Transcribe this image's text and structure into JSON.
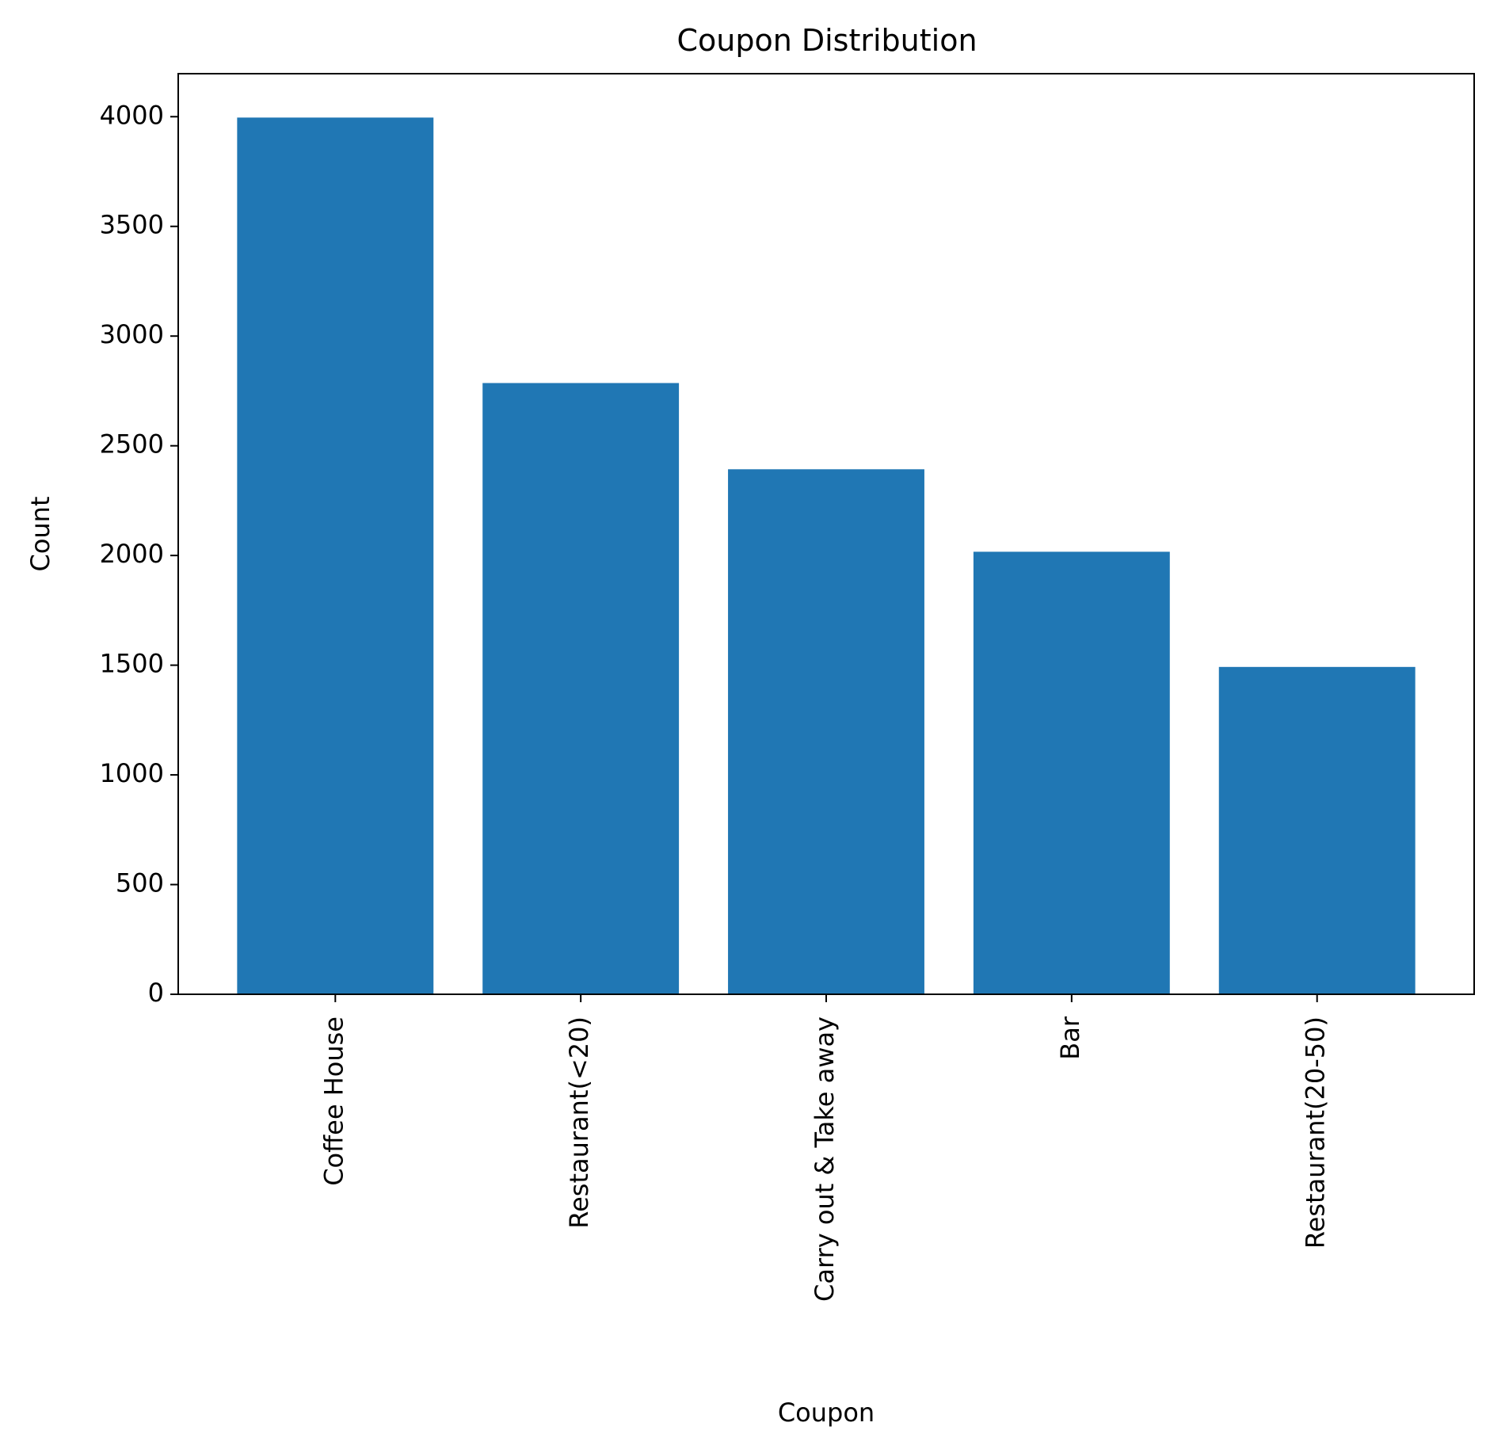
{
  "chart_data": {
    "type": "bar",
    "title": "Coupon Distribution",
    "xlabel": "Coupon",
    "ylabel": "Count",
    "categories": [
      "Coffee House",
      "Restaurant(<20)",
      "Carry out & Take away",
      "Bar",
      "Restaurant(20-50)"
    ],
    "values": [
      3996,
      2786,
      2393,
      2017,
      1492
    ],
    "ylim": [
      0,
      4196
    ],
    "yticks": [
      0,
      500,
      1000,
      1500,
      2000,
      2500,
      3000,
      3500,
      4000
    ],
    "ytick_labels": [
      "0",
      "500",
      "1000",
      "1500",
      "2000",
      "2500",
      "3000",
      "3500",
      "4000"
    ],
    "x_tick_rotation": "vertical",
    "grid": false,
    "legend": "none",
    "bar_color": "#2077b4",
    "axis_color": "#000000"
  }
}
